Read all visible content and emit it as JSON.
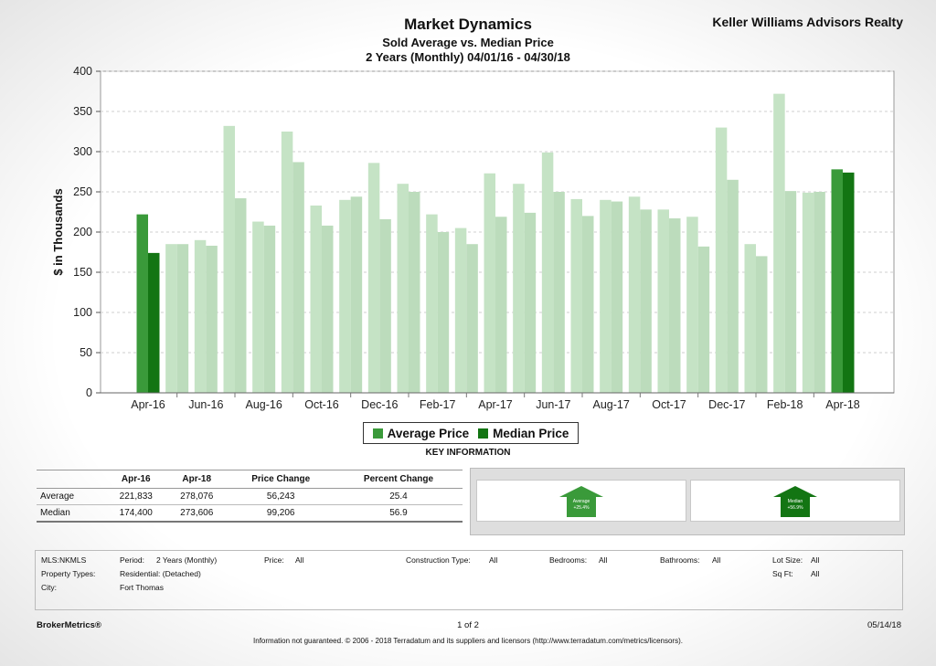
{
  "header": {
    "company": "Keller Williams Advisors Realty",
    "title": "Market Dynamics",
    "subtitle": "Sold Average vs. Median Price",
    "period": "2 Years (Monthly) 04/01/16 - 04/30/18"
  },
  "chart_data": {
    "type": "bar",
    "title": "Market Dynamics",
    "ylabel": "$ in Thousands",
    "ylim": [
      0,
      400
    ],
    "yticks": [
      0,
      50,
      100,
      150,
      200,
      250,
      300,
      350,
      400
    ],
    "grid": true,
    "categories": [
      "Apr-16",
      "May-16",
      "Jun-16",
      "Jul-16",
      "Aug-16",
      "Sep-16",
      "Oct-16",
      "Nov-16",
      "Dec-16",
      "Jan-17",
      "Feb-17",
      "Mar-17",
      "Apr-17",
      "May-17",
      "Jun-17",
      "Jul-17",
      "Aug-17",
      "Sep-17",
      "Oct-17",
      "Nov-17",
      "Dec-17",
      "Jan-18",
      "Feb-18",
      "Mar-18",
      "Apr-18"
    ],
    "x_tick_labels": [
      "Apr-16",
      "Jun-16",
      "Aug-16",
      "Oct-16",
      "Dec-16",
      "Feb-17",
      "Apr-17",
      "Jun-17",
      "Aug-17",
      "Oct-17",
      "Dec-17",
      "Feb-18",
      "Apr-18"
    ],
    "series": [
      {
        "name": "Average Price",
        "color": "#3a9a3a",
        "light_color": "#c5e3c5",
        "values": [
          222,
          185,
          190,
          332,
          213,
          325,
          233,
          240,
          286,
          260,
          222,
          205,
          273,
          260,
          299,
          241,
          240,
          244,
          228,
          219,
          330,
          185,
          372,
          249,
          278
        ]
      },
      {
        "name": "Median Price",
        "color": "#137513",
        "light_color": "#bcdcbc",
        "values": [
          174,
          185,
          183,
          242,
          208,
          287,
          208,
          244,
          216,
          250,
          200,
          185,
          219,
          224,
          250,
          220,
          238,
          228,
          217,
          182,
          265,
          170,
          251,
          250,
          274
        ]
      }
    ],
    "highlighted_categories": [
      "Apr-16",
      "Apr-18"
    ],
    "legend_position": "bottom"
  },
  "legend": {
    "average": "Average Price",
    "median": "Median Price"
  },
  "key_info": {
    "title": "KEY INFORMATION",
    "columns": [
      "",
      "Apr-16",
      "Apr-18",
      "Price Change",
      "Percent Change"
    ],
    "rows": [
      [
        "Average",
        "221,833",
        "278,076",
        "56,243",
        "25.4"
      ],
      [
        "Median",
        "174,400",
        "273,606",
        "99,206",
        "56.9"
      ]
    ],
    "arrows": [
      {
        "label": "Average",
        "value": "+25.4%"
      },
      {
        "label": "Median",
        "value": "+56.9%"
      }
    ]
  },
  "criteria": {
    "mls_label": "MLS:",
    "mls_value": "NKMLS",
    "period_label": "Period:",
    "period_value": "2 Years (Monthly)",
    "price_label": "Price:",
    "price_value": "All",
    "construction_label": "Construction Type:",
    "construction_value": "All",
    "bedrooms_label": "Bedrooms:",
    "bedrooms_value": "All",
    "bathrooms_label": "Bathrooms:",
    "bathrooms_value": "All",
    "lot_label": "Lot Size:",
    "lot_value": "All",
    "property_label": "Property Types:",
    "property_value": "Residential: (Detached)",
    "sqft_label": "Sq Ft:",
    "sqft_value": "All",
    "city_label": "City:",
    "city_value": "Fort Thomas"
  },
  "footer": {
    "brand": "BrokerMetrics®",
    "page": "1 of 2",
    "date": "05/14/18",
    "disclaimer": "Information not guaranteed.  © 2006 - 2018 Terradatum and its suppliers and licensors (http://www.terradatum.com/metrics/licensors)."
  }
}
